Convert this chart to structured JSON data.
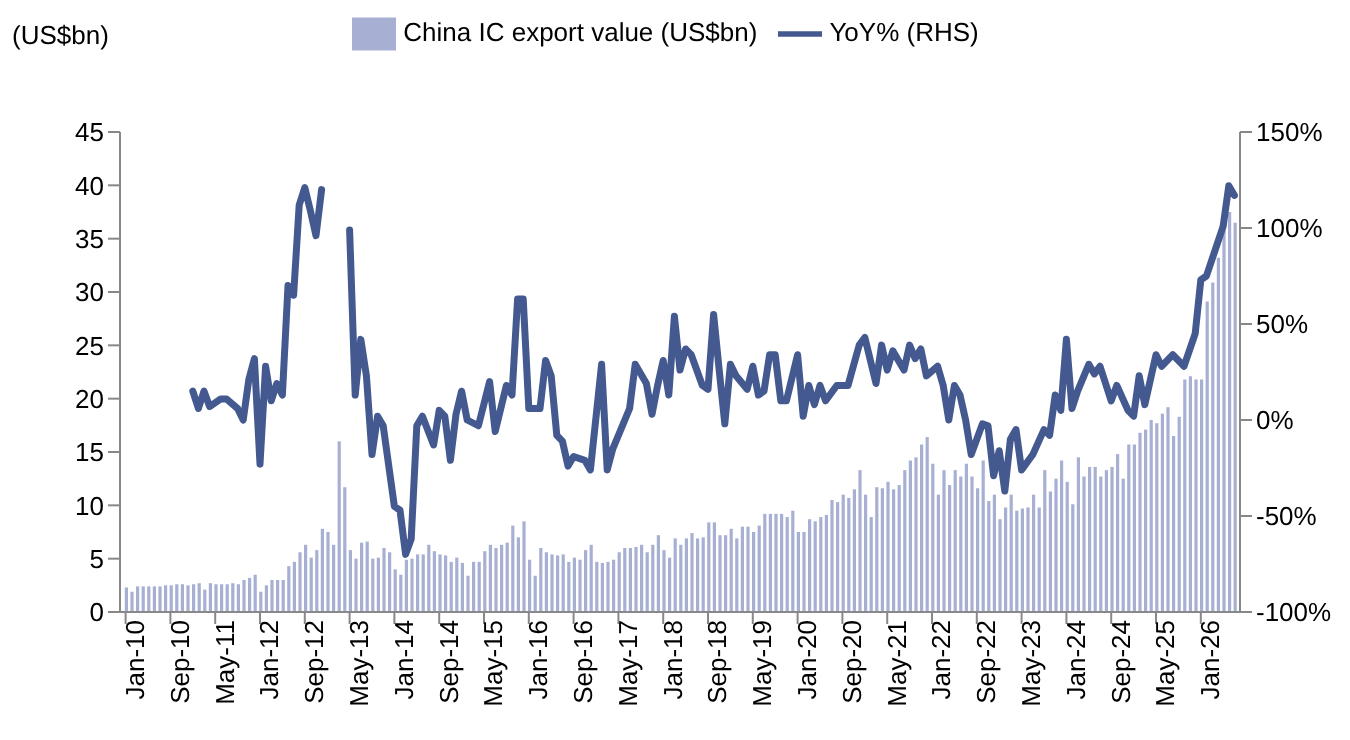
{
  "chart_data": {
    "type": "bar",
    "ylabel": "(US$bn)",
    "legend": "top",
    "x": [
      "2010-01",
      "2010-02",
      "2010-03",
      "2010-04",
      "2010-05",
      "2010-06",
      "2010-07",
      "2010-08",
      "2010-09",
      "2010-10",
      "2010-11",
      "2010-12",
      "2011-01",
      "2011-02",
      "2011-03",
      "2011-04",
      "2011-05",
      "2011-06",
      "2011-07",
      "2011-08",
      "2011-09",
      "2011-10",
      "2011-11",
      "2011-12",
      "2012-01",
      "2012-02",
      "2012-03",
      "2012-04",
      "2012-05",
      "2012-06",
      "2012-07",
      "2012-08",
      "2012-09",
      "2012-10",
      "2012-11",
      "2012-12",
      "2013-01",
      "2013-02",
      "2013-03",
      "2013-04",
      "2013-05",
      "2013-06",
      "2013-07",
      "2013-08",
      "2013-09",
      "2013-10",
      "2013-11",
      "2013-12",
      "2014-01",
      "2014-02",
      "2014-03",
      "2014-04",
      "2014-05",
      "2014-06",
      "2014-07",
      "2014-08",
      "2014-09",
      "2014-10",
      "2014-11",
      "2014-12",
      "2015-01",
      "2015-02",
      "2015-03",
      "2015-04",
      "2015-05",
      "2015-06",
      "2015-07",
      "2015-08",
      "2015-09",
      "2015-10",
      "2015-11",
      "2015-12",
      "2016-01",
      "2016-02",
      "2016-03",
      "2016-04",
      "2016-05",
      "2016-06",
      "2016-07",
      "2016-08",
      "2016-09",
      "2016-10",
      "2016-11",
      "2016-12",
      "2017-01",
      "2017-02",
      "2017-03",
      "2017-04",
      "2017-05",
      "2017-06",
      "2017-07",
      "2017-08",
      "2017-09",
      "2017-10",
      "2017-11",
      "2017-12",
      "2018-01",
      "2018-02",
      "2018-03",
      "2018-04",
      "2018-05",
      "2018-06",
      "2018-07",
      "2018-08",
      "2018-09",
      "2018-10",
      "2018-11",
      "2018-12",
      "2019-01",
      "2019-02",
      "2019-03",
      "2019-04",
      "2019-05",
      "2019-06",
      "2019-07",
      "2019-08",
      "2019-09",
      "2019-10",
      "2019-11",
      "2019-12",
      "2020-01",
      "2020-02",
      "2020-03",
      "2020-04",
      "2020-05",
      "2020-06",
      "2020-07",
      "2020-08",
      "2020-09",
      "2020-10",
      "2020-11",
      "2020-12",
      "2021-01",
      "2021-02",
      "2021-03",
      "2021-04",
      "2021-05",
      "2021-06",
      "2021-07",
      "2021-08",
      "2021-09",
      "2021-10",
      "2021-11",
      "2021-12",
      "2022-01",
      "2022-02",
      "2022-03",
      "2022-04",
      "2022-05",
      "2022-06",
      "2022-07",
      "2022-08",
      "2022-09",
      "2022-10",
      "2022-11",
      "2022-12",
      "2023-01",
      "2023-02",
      "2023-03",
      "2023-04",
      "2023-05",
      "2023-06",
      "2023-07",
      "2023-08",
      "2023-09",
      "2023-10",
      "2023-11",
      "2023-12",
      "2024-01",
      "2024-02",
      "2024-03",
      "2024-04",
      "2024-05",
      "2024-06",
      "2024-07",
      "2024-08",
      "2024-09",
      "2024-10",
      "2024-11",
      "2024-12",
      "2025-01",
      "2025-02",
      "2025-03",
      "2025-04",
      "2025-05",
      "2025-06",
      "2025-07",
      "2025-08",
      "2025-09",
      "2025-10",
      "2025-11",
      "2025-12",
      "2026-01",
      "2026-02",
      "2026-03",
      "2026-04",
      "2026-05",
      "2026-06",
      "2026-07"
    ],
    "series": [
      {
        "name": "China IC export value (US$bn)",
        "color": "#a7afd3",
        "values": [
          2.3,
          1.9,
          2.4,
          2.4,
          2.4,
          2.4,
          2.4,
          2.5,
          2.5,
          2.6,
          2.6,
          2.5,
          2.6,
          2.7,
          2.1,
          2.7,
          2.6,
          2.6,
          2.6,
          2.7,
          2.6,
          3.0,
          3.2,
          3.5,
          1.9,
          2.5,
          3.0,
          3.0,
          3.0,
          4.3,
          4.7,
          5.6,
          6.3,
          5.1,
          5.8,
          7.8,
          7.5,
          6.3,
          16.0,
          11.7,
          5.8,
          5.0,
          6.5,
          6.6,
          5.0,
          5.1,
          6.0,
          5.6,
          4.0,
          3.5,
          4.9,
          5.0,
          5.4,
          5.4,
          6.3,
          5.7,
          5.4,
          5.3,
          4.7,
          5.1,
          4.6,
          3.4,
          4.7,
          4.7,
          5.7,
          6.3,
          6.0,
          6.3,
          6.5,
          8.1,
          7.0,
          8.5,
          4.9,
          3.4,
          6.0,
          5.6,
          5.4,
          5.3,
          5.4,
          4.7,
          5.1,
          4.9,
          5.8,
          6.3,
          4.7,
          4.6,
          4.7,
          4.9,
          5.6,
          6.0,
          6.0,
          6.1,
          6.3,
          5.6,
          6.3,
          7.2,
          5.8,
          5.1,
          6.9,
          6.3,
          6.9,
          7.4,
          6.9,
          7.0,
          8.4,
          8.4,
          7.2,
          7.2,
          7.8,
          6.9,
          8.0,
          8.0,
          7.5,
          8.1,
          9.2,
          9.2,
          9.2,
          9.2,
          8.9,
          9.5,
          7.5,
          7.5,
          8.7,
          8.5,
          8.9,
          9.1,
          10.5,
          10.3,
          11.0,
          10.7,
          11.5,
          13.3,
          11.0,
          8.9,
          11.7,
          11.6,
          12.2,
          11.5,
          11.9,
          13.3,
          14.2,
          14.5,
          15.7,
          16.4,
          13.9,
          11.0,
          13.3,
          11.9,
          13.3,
          12.7,
          13.9,
          12.7,
          11.6,
          14.2,
          10.4,
          11.0,
          8.7,
          9.8,
          11.0,
          9.5,
          9.7,
          9.8,
          11.0,
          9.8,
          13.3,
          11.3,
          12.5,
          14.2,
          12.2,
          10.1,
          14.5,
          12.7,
          13.6,
          13.6,
          12.7,
          13.3,
          13.6,
          14.8,
          12.5,
          15.7,
          15.7,
          16.8,
          17.1,
          18.0,
          17.7,
          18.6,
          19.2,
          16.5,
          18.3,
          21.8,
          22.1,
          21.8,
          21.8,
          29.1,
          30.9,
          33.2,
          35.8,
          37.5,
          36.5
        ]
      },
      {
        "name": "YoY% (RHS)",
        "type": "line",
        "axis": "y2",
        "color": "#44598f",
        "x": [
          "2011-01",
          "2011-02",
          "2011-03",
          "2011-04",
          "2011-06",
          "2011-07",
          "2011-09",
          "2011-10",
          "2011-11",
          "2011-12",
          "2012-01",
          "2012-02",
          "2012-03",
          "2012-04",
          "2012-05",
          "2012-06",
          "2012-07",
          "2012-08",
          "2012-09",
          "2012-10",
          "2012-11",
          "2012-12",
          "2013-02",
          "2013-05",
          "2013-06",
          "2013-07",
          "2013-08",
          "2013-09",
          "2013-10",
          "2013-11",
          "2014-01",
          "2014-02",
          "2014-03",
          "2014-04",
          "2014-05",
          "2014-06",
          "2014-08",
          "2014-09",
          "2014-10",
          "2014-11",
          "2014-12",
          "2015-01",
          "2015-02",
          "2015-04",
          "2015-06",
          "2015-07",
          "2015-09",
          "2015-10",
          "2015-11",
          "2015-12",
          "2016-01",
          "2016-03",
          "2016-04",
          "2016-05",
          "2016-06",
          "2016-07",
          "2016-08",
          "2016-09",
          "2016-11",
          "2016-12",
          "2017-02",
          "2017-03",
          "2017-04",
          "2017-07",
          "2017-08",
          "2017-10",
          "2017-11",
          "2017-12",
          "2018-01",
          "2018-02",
          "2018-03",
          "2018-04",
          "2018-05",
          "2018-06",
          "2018-08",
          "2018-09",
          "2018-10",
          "2018-11",
          "2018-12",
          "2019-01",
          "2019-02",
          "2019-04",
          "2019-05",
          "2019-06",
          "2019-07",
          "2019-08",
          "2019-09",
          "2019-10",
          "2019-11",
          "2020-01",
          "2020-02",
          "2020-03",
          "2020-04",
          "2020-05",
          "2020-06",
          "2020-08",
          "2020-10",
          "2020-12",
          "2021-01",
          "2021-03",
          "2021-04",
          "2021-05",
          "2021-06",
          "2021-08",
          "2021-09",
          "2021-10",
          "2021-11",
          "2021-12",
          "2022-02",
          "2022-03",
          "2022-04",
          "2022-05",
          "2022-06",
          "2022-07",
          "2022-08",
          "2022-10",
          "2022-11",
          "2022-12",
          "2023-01",
          "2023-02",
          "2023-03",
          "2023-04",
          "2023-05",
          "2023-07",
          "2023-09",
          "2023-10",
          "2023-11",
          "2023-12",
          "2024-01",
          "2024-02",
          "2024-03",
          "2024-05",
          "2024-06",
          "2024-07",
          "2024-09",
          "2024-10",
          "2024-12",
          "2025-01",
          "2025-02",
          "2025-03",
          "2025-05",
          "2025-06",
          "2025-08",
          "2025-10",
          "2025-12",
          "2026-01",
          "2026-02",
          "2026-05",
          "2026-06",
          "2026-07"
        ],
        "values": [
          15,
          6,
          15,
          7,
          11,
          11,
          6,
          0,
          21,
          32,
          -23,
          28,
          10,
          19,
          13,
          70,
          65,
          112,
          121,
          109,
          96,
          120,
          null,
          99,
          13,
          42,
          23,
          -18,
          2,
          -3,
          -45,
          -47,
          -70,
          -62,
          -3,
          2,
          -13,
          5,
          2,
          -21,
          3,
          15,
          0,
          -3,
          20,
          -6,
          18,
          13,
          63,
          63,
          6,
          6,
          31,
          23,
          -8,
          -11,
          -24,
          -19,
          -21,
          -26,
          29,
          -26,
          -15,
          6,
          29,
          19,
          3,
          18,
          31,
          13,
          54,
          26,
          37,
          34,
          18,
          16,
          55,
          26,
          -2,
          29,
          23,
          16,
          28,
          13,
          15,
          34,
          34,
          10,
          10,
          34,
          2,
          18,
          8,
          18,
          10,
          18,
          18,
          39,
          43,
          19,
          39,
          26,
          36,
          26,
          39,
          32,
          37,
          23,
          28,
          18,
          0,
          18,
          13,
          0,
          -18,
          -2,
          -3,
          -29,
          -16,
          -37,
          -10,
          -5,
          -26,
          -18,
          -5,
          -8,
          13,
          5,
          42,
          6,
          15,
          29,
          24,
          28,
          10,
          18,
          5,
          2,
          23,
          8,
          34,
          28,
          34,
          28,
          45,
          73,
          75,
          101,
          122,
          117
        ]
      }
    ],
    "xlim": [
      "2009-12",
      "2026-08"
    ],
    "xticks": [
      {
        "value": "2010-01",
        "label": "Jan-10"
      },
      {
        "value": "2010-09",
        "label": "Sep-10"
      },
      {
        "value": "2011-05",
        "label": "May-11"
      },
      {
        "value": "2012-01",
        "label": "Jan-12"
      },
      {
        "value": "2012-09",
        "label": "Sep-12"
      },
      {
        "value": "2013-05",
        "label": "May-13"
      },
      {
        "value": "2014-01",
        "label": "Jan-14"
      },
      {
        "value": "2014-09",
        "label": "Sep-14"
      },
      {
        "value": "2015-05",
        "label": "May-15"
      },
      {
        "value": "2016-01",
        "label": "Jan-16"
      },
      {
        "value": "2016-09",
        "label": "Sep-16"
      },
      {
        "value": "2017-05",
        "label": "May-17"
      },
      {
        "value": "2018-01",
        "label": "Jan-18"
      },
      {
        "value": "2018-09",
        "label": "Sep-18"
      },
      {
        "value": "2019-05",
        "label": "May-19"
      },
      {
        "value": "2020-01",
        "label": "Jan-20"
      },
      {
        "value": "2020-09",
        "label": "Sep-20"
      },
      {
        "value": "2021-05",
        "label": "May-21"
      },
      {
        "value": "2022-01",
        "label": "Jan-22"
      },
      {
        "value": "2022-09",
        "label": "Sep-22"
      },
      {
        "value": "2023-05",
        "label": "May-23"
      },
      {
        "value": "2024-01",
        "label": "Jan-24"
      },
      {
        "value": "2024-09",
        "label": "Sep-24"
      },
      {
        "value": "2025-05",
        "label": "May-25"
      },
      {
        "value": "2026-01",
        "label": "Jan-26"
      }
    ],
    "ylim": [
      0,
      45
    ],
    "yticks": [
      0,
      5,
      10,
      15,
      20,
      25,
      30,
      35,
      40,
      45
    ],
    "y2lim": [
      -100,
      150
    ],
    "y2ticks": [
      {
        "value": -100,
        "label": "-100%"
      },
      {
        "value": -50,
        "label": "-50%"
      },
      {
        "value": 0,
        "label": "0%"
      },
      {
        "value": 50,
        "label": "50%"
      },
      {
        "value": 100,
        "label": "100%"
      },
      {
        "value": 150,
        "label": "150%"
      }
    ]
  }
}
